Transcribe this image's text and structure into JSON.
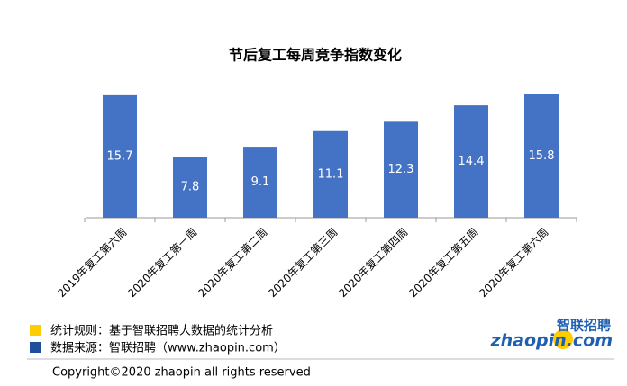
{
  "chart_data": {
    "type": "bar",
    "title": "节后复工每周竞争指数变化",
    "categories": [
      "2019年复工第六周",
      "2020年复工第一周",
      "2020年复工第二周",
      "2020年复工第三周",
      "2020年复工第四周",
      "2020年复工第五周",
      "2020年复工第六周"
    ],
    "values": [
      15.7,
      7.8,
      9.1,
      11.1,
      12.3,
      14.4,
      15.8
    ],
    "color": "#4472c4"
  },
  "footer": {
    "notes": [
      {
        "text": "统计规则：基于智联招聘大数据的统计分析",
        "color": "#ffcc00"
      },
      {
        "text": "数据来源：智联招聘（www.zhaopin.com）",
        "color": "#1f4e9c"
      }
    ],
    "copyright": "Copyright©2020 zhaopin all rights reserved",
    "logo": {
      "brand": "智联招聘",
      "site": "zhaopin.com"
    }
  }
}
